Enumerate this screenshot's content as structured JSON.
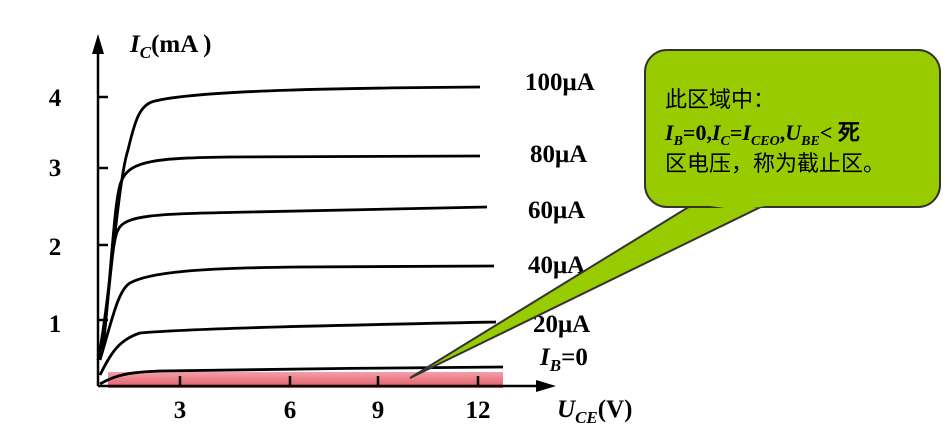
{
  "y_axis_label": {
    "symbol": "I",
    "subscript": "C",
    "unit": "(mA )"
  },
  "x_axis_label": {
    "symbol": "U",
    "subscript": "CE",
    "unit": "(V)"
  },
  "y_ticks": [
    1,
    2,
    3,
    4
  ],
  "x_ticks": [
    3,
    6,
    9,
    12
  ],
  "curve_labels": [
    "100μA",
    "80μA",
    "60μA",
    "40μA",
    "20μA"
  ],
  "cutoff_label": {
    "symbol": "I",
    "subscript": "B",
    "rest": "=0"
  },
  "callout": {
    "line1": "此区域中：",
    "line2": [
      {
        "t": "I"
      },
      {
        "sub": "B"
      },
      {
        "t": "=0,"
      },
      {
        "t": "I"
      },
      {
        "sub": "C"
      },
      {
        "t": "="
      },
      {
        "t": "I"
      },
      {
        "sub": "CEO"
      },
      {
        "t": ","
      },
      {
        "t": "U"
      },
      {
        "sub": "BE"
      },
      {
        "t": "< 死"
      }
    ],
    "line3": "区电压，称为截止区。"
  }
}
